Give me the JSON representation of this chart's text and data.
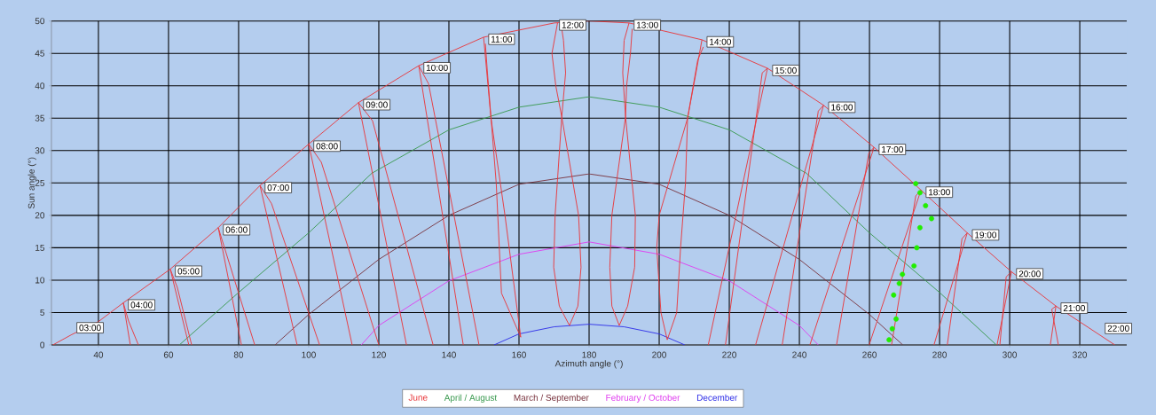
{
  "chart_data": {
    "type": "line",
    "xlabel": "Azimuth angle (°)",
    "ylabel": "Sun angle (°)",
    "xlim": [
      26.6,
      333.4
    ],
    "ylim": [
      0,
      50
    ],
    "xticks": [
      40,
      60,
      80,
      100,
      120,
      140,
      160,
      180,
      200,
      220,
      240,
      260,
      280,
      300,
      320
    ],
    "yticks": [
      0,
      5,
      10,
      15,
      20,
      25,
      30,
      35,
      40,
      45,
      50
    ],
    "grid": true,
    "legend": "bottom",
    "marker": "none",
    "line_style": "solid",
    "series": [
      {
        "name": "June",
        "color": "#e8383c",
        "x": [
          27,
          32.4,
          40,
          47.1,
          60.5,
          74.2,
          86.1,
          100,
          114.2,
          131.4,
          149.9,
          170.1,
          180,
          191.4,
          212.2,
          230.9,
          246.9,
          261.3,
          274.7,
          287.9,
          300.5,
          313.2,
          325.8,
          330
        ],
        "values": [
          0,
          1.6,
          3.6,
          6.5,
          11.7,
          18.1,
          24.6,
          31.0,
          37.4,
          43.1,
          47.5,
          49.7,
          50,
          49.7,
          47.1,
          42.7,
          37.0,
          30.5,
          23.9,
          17.3,
          11.3,
          6.0,
          1.5,
          0
        ]
      },
      {
        "name": "April / August",
        "color": "#3a9a50",
        "x": [
          63.1,
          80,
          100,
          118,
          140,
          160,
          180,
          200,
          220,
          242,
          260,
          280,
          296.2
        ],
        "values": [
          0,
          8.1,
          17.3,
          26.5,
          33.2,
          36.7,
          38.3,
          36.7,
          33.2,
          26.5,
          17.3,
          8.1,
          0
        ]
      },
      {
        "name": "March / September",
        "color": "#7a3540",
        "x": [
          90.4,
          100,
          120,
          140,
          160,
          180,
          200,
          220,
          240,
          260,
          269.5
        ],
        "values": [
          0,
          4.7,
          13.2,
          20.0,
          24.8,
          26.4,
          24.8,
          20.0,
          13.2,
          4.7,
          0
        ]
      },
      {
        "name": "February / October",
        "color": "#e040f0",
        "x": [
          115,
          120,
          140,
          160,
          180,
          200,
          220,
          240,
          245.4
        ],
        "values": [
          0,
          3.0,
          9.9,
          14.0,
          15.9,
          14.0,
          9.9,
          3.0,
          0
        ]
      },
      {
        "name": "December",
        "color": "#3030e8",
        "x": [
          152.9,
          160,
          170,
          180,
          190,
          200,
          207.3
        ],
        "values": [
          0,
          1.7,
          2.8,
          3.2,
          2.8,
          1.7,
          0
        ]
      },
      {
        "color": "#e8383c",
        "x": [
          49.1,
          47.1,
          48.6,
          51.4,
          null,
          65.8,
          60.5,
          62.5,
          66.6,
          null,
          80.8,
          74.2,
          75.8,
          84.6,
          null,
          96.7,
          86.1,
          89.4,
          103.1,
          null,
          112.4,
          100.0,
          103.6,
          120.0,
          null,
          127.9,
          114.2,
          118.2,
          135.5,
          null,
          144.1,
          131.4,
          134.2,
          148.6,
          null,
          149.9,
          152,
          156,
          160.5,
          155,
          153.5,
          151,
          150.4,
          null,
          171,
          169.4,
          170.5,
          172.2,
          177,
          177.7,
          176.8,
          174.4,
          171.5,
          169.9,
          170.3,
          172.2,
          173.3,
          172.7,
          172.2,
          null,
          191.4,
          190.0,
          189.6,
          190.4,
          186.5,
          185.9,
          186.5,
          188.6,
          191,
          193.0,
          193.2,
          190.4,
          190.7,
          191.8,
          192.3,
          null,
          212.2,
          210.5,
          208.1,
          200,
          199.3,
          200.5,
          202.3,
          205,
          206.1,
          207.5,
          208.1,
          211,
          212.6,
          null,
          214.0,
          230.9,
          229.4,
          218.9,
          null,
          227.5,
          246.9,
          245.4,
          235.1,
          null,
          243.0,
          261.3,
          259.8,
          250.6,
          null,
          259.9,
          274.7,
          273.2,
          266.3,
          null,
          278.4,
          287.9,
          286.4,
          282.2,
          null,
          296.4,
          300.5,
          299.0,
          297.2,
          null,
          311.6,
          313.2,
          312.0,
          313.9
        ],
        "values": [
          0,
          6.5,
          3.7,
          0,
          null,
          0,
          11.7,
          8.9,
          0,
          null,
          0,
          18.1,
          15.3,
          0,
          null,
          0,
          24.6,
          21.8,
          0,
          null,
          0,
          31.0,
          28.2,
          0,
          null,
          0,
          37.4,
          34.6,
          0,
          null,
          0,
          43.1,
          40.3,
          0,
          null,
          47.5,
          35,
          20,
          1.2,
          8,
          25,
          42,
          46.5,
          null,
          49.7,
          45,
          40,
          35.2,
          20,
          12,
          6,
          3,
          6,
          12,
          20,
          35.2,
          42,
          47,
          48.8,
          null,
          49.7,
          47,
          42,
          35.2,
          20,
          12,
          6,
          3,
          6,
          12,
          20,
          35.2,
          40,
          45,
          48.8,
          null,
          47.1,
          42,
          35,
          20,
          15,
          5,
          0.8,
          5,
          15,
          25,
          35,
          44,
          46.0,
          null,
          0,
          42.7,
          42.0,
          0,
          null,
          0,
          37.0,
          36.1,
          0,
          null,
          0,
          30.5,
          29.6,
          0,
          null,
          0,
          23.9,
          23.0,
          0,
          null,
          0,
          17.3,
          16.4,
          0,
          null,
          0,
          11.3,
          10.5,
          0,
          null,
          0,
          6.0,
          5.5,
          0
        ]
      },
      {
        "type": "scatter",
        "color": "#22ee00",
        "x": [
          273.2,
          274.4,
          276,
          277.7,
          274.4,
          273.5,
          272.7,
          269.4,
          268.5,
          266.9,
          267.6,
          266.5,
          265.6
        ],
        "values": [
          24.9,
          23.5,
          21.5,
          19.5,
          18.1,
          15,
          12.2,
          10.9,
          9.5,
          7.7,
          4.0,
          2.5,
          0.8
        ]
      }
    ],
    "annotations": [
      {
        "text": "03:00",
        "x": 32.4,
        "y": 1.6
      },
      {
        "text": "04:00",
        "x": 47.1,
        "y": 6.5
      },
      {
        "text": "05:00",
        "x": 60.5,
        "y": 11.7
      },
      {
        "text": "06:00",
        "x": 74.2,
        "y": 18.1
      },
      {
        "text": "07:00",
        "x": 86.1,
        "y": 24.6
      },
      {
        "text": "08:00",
        "x": 100,
        "y": 31.0
      },
      {
        "text": "09:00",
        "x": 114.2,
        "y": 37.4
      },
      {
        "text": "10:00",
        "x": 131.4,
        "y": 43.1
      },
      {
        "text": "11:00",
        "x": 149.9,
        "y": 47.5
      },
      {
        "text": "12:00",
        "x": 170.1,
        "y": 49.7
      },
      {
        "text": "13:00",
        "x": 191.4,
        "y": 49.7
      },
      {
        "text": "14:00",
        "x": 212.2,
        "y": 47.1
      },
      {
        "text": "15:00",
        "x": 230.9,
        "y": 42.7
      },
      {
        "text": "16:00",
        "x": 246.9,
        "y": 37.0
      },
      {
        "text": "17:00",
        "x": 261.3,
        "y": 30.5
      },
      {
        "text": "18:00",
        "x": 274.7,
        "y": 23.9
      },
      {
        "text": "19:00",
        "x": 287.9,
        "y": 17.3
      },
      {
        "text": "20:00",
        "x": 300.5,
        "y": 11.3
      },
      {
        "text": "21:00",
        "x": 313.2,
        "y": 6.0
      },
      {
        "text": "22:00",
        "x": 325.8,
        "y": 1.5
      }
    ]
  }
}
